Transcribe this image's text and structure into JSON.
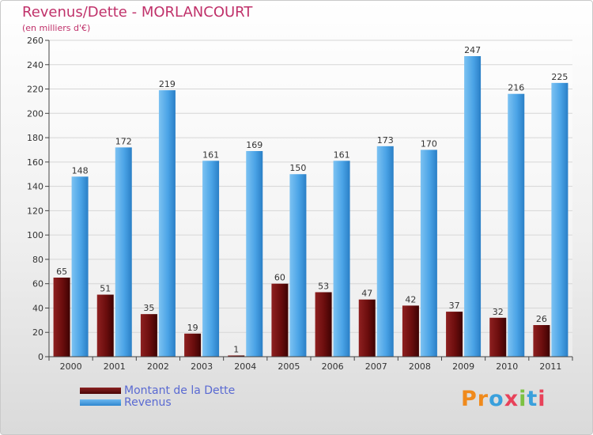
{
  "chart_data": {
    "type": "bar",
    "title": "Revenus/Dette - MORLANCOURT",
    "subtitle": "(en milliers d'€)",
    "xlabel": "",
    "ylabel": "",
    "ylim": [
      0,
      260
    ],
    "yticks": [
      "0",
      "20",
      "40",
      "60",
      "80",
      "100",
      "120",
      "140",
      "160",
      "180",
      "200",
      "220",
      "240",
      "260"
    ],
    "grid": true,
    "legend_position": "bottom-left",
    "categories": [
      "2000",
      "2001",
      "2002",
      "2003",
      "2004",
      "2005",
      "2006",
      "2007",
      "2008",
      "2009",
      "2010",
      "2011"
    ],
    "series": [
      {
        "name": "Montant de la Dette",
        "color": "#6b0d0d",
        "values": [
          65,
          51,
          35,
          19,
          1,
          60,
          53,
          47,
          42,
          37,
          32,
          26
        ]
      },
      {
        "name": "Revenus",
        "color": "#4aa3e6",
        "values": [
          148,
          172,
          219,
          161,
          169,
          150,
          161,
          173,
          170,
          247,
          216,
          225
        ]
      }
    ]
  },
  "brand": {
    "text": "Proxiti"
  }
}
